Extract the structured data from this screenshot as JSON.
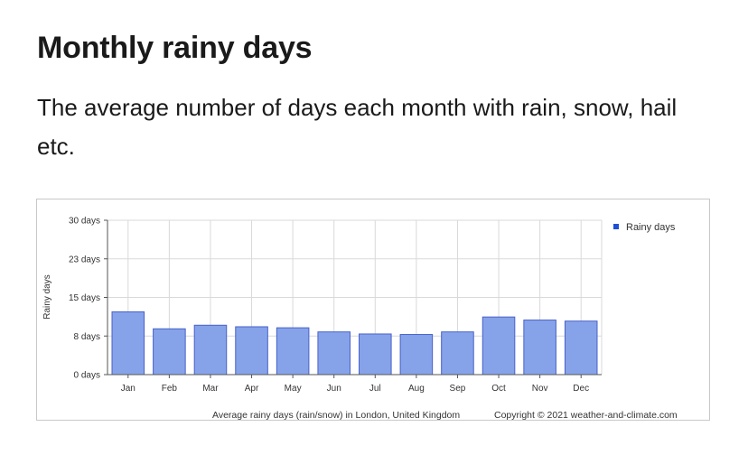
{
  "header": {
    "title": "Monthly rainy days",
    "description": "The average number of days each month with rain, snow, hail etc."
  },
  "colors": {
    "bar_fill": "#86a3ea",
    "bar_stroke": "#4860c8",
    "legend_marker": "#1f4fd8",
    "grid": "#d9d9d9",
    "axis": "#555555"
  },
  "chart_data": {
    "type": "bar",
    "categories": [
      "Jan",
      "Feb",
      "Mar",
      "Apr",
      "May",
      "Jun",
      "Jul",
      "Aug",
      "Sep",
      "Oct",
      "Nov",
      "Dec"
    ],
    "series": [
      {
        "name": "Rainy days",
        "values": [
          12.2,
          8.9,
          9.6,
          9.3,
          9.1,
          8.3,
          7.9,
          7.8,
          8.3,
          11.2,
          10.6,
          10.4
        ]
      }
    ],
    "ylim": [
      0,
      30
    ],
    "yticks": [
      0,
      7.5,
      15,
      22.5,
      30
    ],
    "ytick_labels": [
      "0 days",
      "8 days",
      "15 days",
      "23 days",
      "30 days"
    ],
    "ylabel": "Rainy days",
    "xlabel": "",
    "grid": true,
    "legend": {
      "position": "top-right",
      "label": "Rainy days"
    },
    "footer": {
      "caption": "Average rainy days (rain/snow) in London, United Kingdom",
      "copyright": "Copyright © 2021  weather-and-climate.com"
    }
  }
}
